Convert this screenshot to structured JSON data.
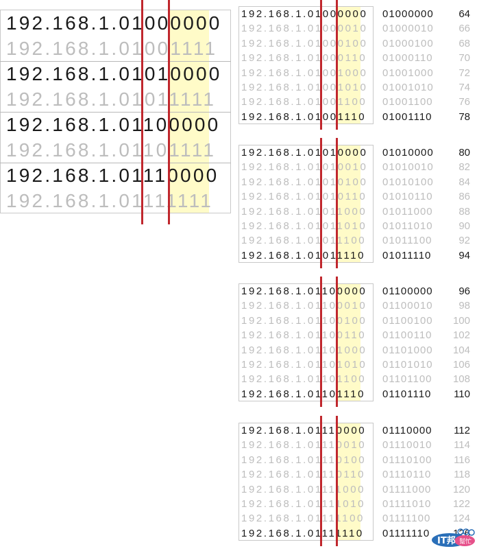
{
  "left_table": {
    "rows": [
      {
        "ip": "192.168.1.01000000",
        "tone": "dark"
      },
      {
        "ip": "192.168.1.01001111",
        "tone": "light"
      },
      {
        "ip": "192.168.1.01010000",
        "tone": "dark"
      },
      {
        "ip": "192.168.1.01011111",
        "tone": "light"
      },
      {
        "ip": "192.168.1.01100000",
        "tone": "dark"
      },
      {
        "ip": "192.168.1.01101111",
        "tone": "light"
      },
      {
        "ip": "192.168.1.01110000",
        "tone": "dark"
      },
      {
        "ip": "192.168.1.01111111",
        "tone": "light"
      }
    ]
  },
  "right_blocks": [
    {
      "rows": [
        {
          "ip": "192.168.1.01000000",
          "bin": "01000000",
          "dec": "64",
          "tone": "dark"
        },
        {
          "ip": "192.168.1.01000010",
          "bin": "01000010",
          "dec": "66",
          "tone": "light"
        },
        {
          "ip": "192.168.1.01000100",
          "bin": "01000100",
          "dec": "68",
          "tone": "light"
        },
        {
          "ip": "192.168.1.01000110",
          "bin": "01000110",
          "dec": "70",
          "tone": "light"
        },
        {
          "ip": "192.168.1.01001000",
          "bin": "01001000",
          "dec": "72",
          "tone": "light"
        },
        {
          "ip": "192.168.1.01001010",
          "bin": "01001010",
          "dec": "74",
          "tone": "light"
        },
        {
          "ip": "192.168.1.01001100",
          "bin": "01001100",
          "dec": "76",
          "tone": "light"
        },
        {
          "ip": "192.168.1.01001110",
          "bin": "01001110",
          "dec": "78",
          "tone": "dark"
        }
      ]
    },
    {
      "rows": [
        {
          "ip": "192.168.1.01010000",
          "bin": "01010000",
          "dec": "80",
          "tone": "dark"
        },
        {
          "ip": "192.168.1.01010010",
          "bin": "01010010",
          "dec": "82",
          "tone": "light"
        },
        {
          "ip": "192.168.1.01010100",
          "bin": "01010100",
          "dec": "84",
          "tone": "light"
        },
        {
          "ip": "192.168.1.01010110",
          "bin": "01010110",
          "dec": "86",
          "tone": "light"
        },
        {
          "ip": "192.168.1.01011000",
          "bin": "01011000",
          "dec": "88",
          "tone": "light"
        },
        {
          "ip": "192.168.1.01011010",
          "bin": "01011010",
          "dec": "90",
          "tone": "light"
        },
        {
          "ip": "192.168.1.01011100",
          "bin": "01011100",
          "dec": "92",
          "tone": "light"
        },
        {
          "ip": "192.168.1.01011110",
          "bin": "01011110",
          "dec": "94",
          "tone": "dark"
        }
      ]
    },
    {
      "rows": [
        {
          "ip": "192.168.1.01100000",
          "bin": "01100000",
          "dec": "96",
          "tone": "dark"
        },
        {
          "ip": "192.168.1.01100010",
          "bin": "01100010",
          "dec": "98",
          "tone": "light"
        },
        {
          "ip": "192.168.1.01100100",
          "bin": "01100100",
          "dec": "100",
          "tone": "light"
        },
        {
          "ip": "192.168.1.01100110",
          "bin": "01100110",
          "dec": "102",
          "tone": "light"
        },
        {
          "ip": "192.168.1.01101000",
          "bin": "01101000",
          "dec": "104",
          "tone": "light"
        },
        {
          "ip": "192.168.1.01101010",
          "bin": "01101010",
          "dec": "106",
          "tone": "light"
        },
        {
          "ip": "192.168.1.01101100",
          "bin": "01101100",
          "dec": "108",
          "tone": "light"
        },
        {
          "ip": "192.168.1.01101110",
          "bin": "01101110",
          "dec": "110",
          "tone": "dark"
        }
      ]
    },
    {
      "rows": [
        {
          "ip": "192.168.1.01110000",
          "bin": "01110000",
          "dec": "112",
          "tone": "dark"
        },
        {
          "ip": "192.168.1.01110010",
          "bin": "01110010",
          "dec": "114",
          "tone": "light"
        },
        {
          "ip": "192.168.1.01110100",
          "bin": "01110100",
          "dec": "116",
          "tone": "light"
        },
        {
          "ip": "192.168.1.01110110",
          "bin": "01110110",
          "dec": "118",
          "tone": "light"
        },
        {
          "ip": "192.168.1.01111000",
          "bin": "01111000",
          "dec": "120",
          "tone": "light"
        },
        {
          "ip": "192.168.1.01111010",
          "bin": "01111010",
          "dec": "122",
          "tone": "light"
        },
        {
          "ip": "192.168.1.01111100",
          "bin": "01111100",
          "dec": "124",
          "tone": "light"
        },
        {
          "ip": "192.168.1.01111110",
          "bin": "01111110",
          "dec": "126",
          "tone": "dark"
        }
      ]
    }
  ],
  "colors": {
    "divider_line": "#c0272d",
    "highlight": "#fffbc8",
    "dark_text": "#1a1a1a",
    "light_text": "#bdbdbd"
  },
  "watermark": {
    "text": "IT邦幫忙"
  }
}
